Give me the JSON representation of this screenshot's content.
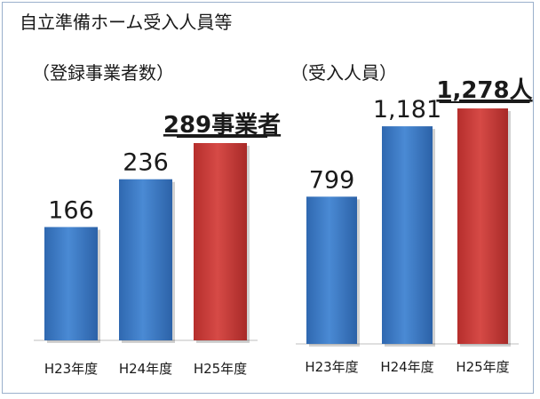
{
  "title": "自立準備ホーム受入人員等",
  "chart_data": [
    {
      "type": "bar",
      "title": "（登録事業者数）",
      "categories": [
        "H23年度",
        "H24年度",
        "H25年度"
      ],
      "values": [
        166,
        236,
        289
      ],
      "value_labels": [
        "166",
        "236",
        "289事業者"
      ],
      "highlight_index": 2,
      "ylim": [
        0,
        289
      ],
      "grid": false,
      "colors": {
        "normal": "#3a78c4",
        "highlight": "#c93a38"
      }
    },
    {
      "type": "bar",
      "title": "（受入人員）",
      "categories": [
        "H23年度",
        "H24年度",
        "H25年度"
      ],
      "values": [
        799,
        1181,
        1278
      ],
      "value_labels": [
        "799",
        "1,181",
        "1,278人"
      ],
      "highlight_index": 2,
      "ylim": [
        0,
        1278
      ],
      "grid": false,
      "colors": {
        "normal": "#3a78c4",
        "highlight": "#c93a38"
      }
    }
  ]
}
